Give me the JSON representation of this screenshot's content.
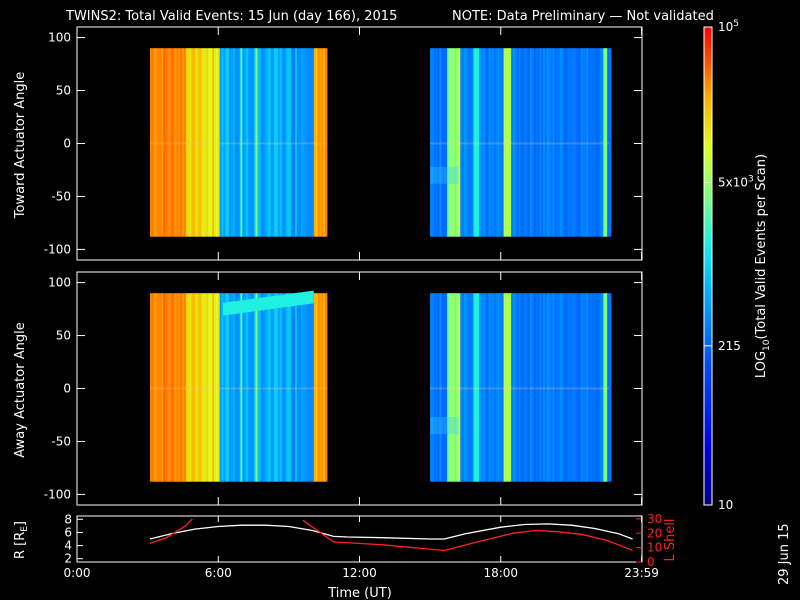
{
  "title": "TWINS2: Total Valid Events: 15 Jun (day 166), 2015",
  "note": "NOTE: Data Preliminary — Not validated",
  "note_color": "#ff2020",
  "date_stamp": "29 Jun 15",
  "chart_data": [
    {
      "type": "heatmap",
      "name": "toward",
      "ylabel": "Toward Actuator Angle",
      "ylim": [
        -110,
        110
      ],
      "yticks": [
        100,
        50,
        0,
        -50,
        -100
      ],
      "x_hours": [
        0,
        24
      ],
      "data_blocks": [
        {
          "start_h": 3.1,
          "end_h": 10.6,
          "angle_range": [
            -88,
            90
          ]
        },
        {
          "start_h": 15.0,
          "end_h": 22.6,
          "angle_range": [
            -88,
            90
          ]
        }
      ]
    },
    {
      "type": "heatmap",
      "name": "away",
      "ylabel": "Away Actuator Angle",
      "ylim": [
        -110,
        110
      ],
      "yticks": [
        100,
        50,
        0,
        -50,
        -100
      ],
      "x_hours": [
        0,
        24
      ],
      "data_blocks": [
        {
          "start_h": 3.1,
          "end_h": 10.6,
          "angle_range": [
            -88,
            90
          ]
        },
        {
          "start_h": 15.0,
          "end_h": 22.6,
          "angle_range": [
            -88,
            90
          ]
        }
      ]
    },
    {
      "type": "line",
      "name": "orbit",
      "ylabel_left": "R [RE]",
      "ylabel_right": "L Shell",
      "left_color": "#ffffff",
      "right_color": "#ff2020",
      "ylim_left": [
        1.5,
        8.5
      ],
      "yticks_left": [
        8,
        6,
        4,
        2
      ],
      "ylim_right": [
        0,
        32
      ],
      "yticks_right": [
        30,
        20,
        10,
        0
      ],
      "xticks": [
        "0:00",
        "6:00",
        "12:00",
        "18:00",
        "23:59"
      ],
      "xtick_hours": [
        0,
        6,
        12,
        18,
        23.983
      ],
      "xlabel": "Time (UT)",
      "series": [
        {
          "axis": "left",
          "x": [
            3.1,
            4.0,
            5.0,
            6.0,
            7.0,
            8.0,
            9.0,
            10.0,
            10.9,
            11.5,
            13.0,
            15.0,
            15.6,
            16.5,
            18.0,
            19.0,
            20.0,
            21.0,
            22.0,
            23.0,
            23.6
          ],
          "y": [
            5.0,
            5.8,
            6.5,
            6.9,
            7.1,
            7.1,
            6.9,
            6.3,
            5.4,
            5.3,
            5.2,
            5.0,
            5.0,
            5.8,
            6.8,
            7.2,
            7.3,
            7.1,
            6.6,
            5.8,
            5.0
          ]
        },
        {
          "axis": "right",
          "x": [
            3.1,
            3.8,
            4.6,
            4.9
          ],
          "y": [
            13,
            17,
            25,
            30
          ]
        },
        {
          "axis": "right",
          "x": [
            9.6,
            10.2,
            10.9,
            13.0,
            15.6,
            17.0,
            18.5,
            19.5,
            20.5,
            21.5,
            22.5,
            23.0,
            23.6
          ],
          "y": [
            29,
            22,
            14,
            12,
            8,
            14,
            20,
            22,
            21,
            19,
            15,
            12,
            8
          ]
        }
      ]
    }
  ],
  "colorbar": {
    "label": "LOG10(Total Valid Events per Scan)",
    "label_main": "LOG",
    "label_sub": "10",
    "label_rest": "(Total Valid Events per Scan)",
    "tick_labels": [
      "10^5",
      "5x10^3",
      "215",
      "10"
    ],
    "tick_log_values": [
      5,
      3.699,
      2.332,
      1
    ],
    "range_log": [
      1,
      5
    ]
  }
}
